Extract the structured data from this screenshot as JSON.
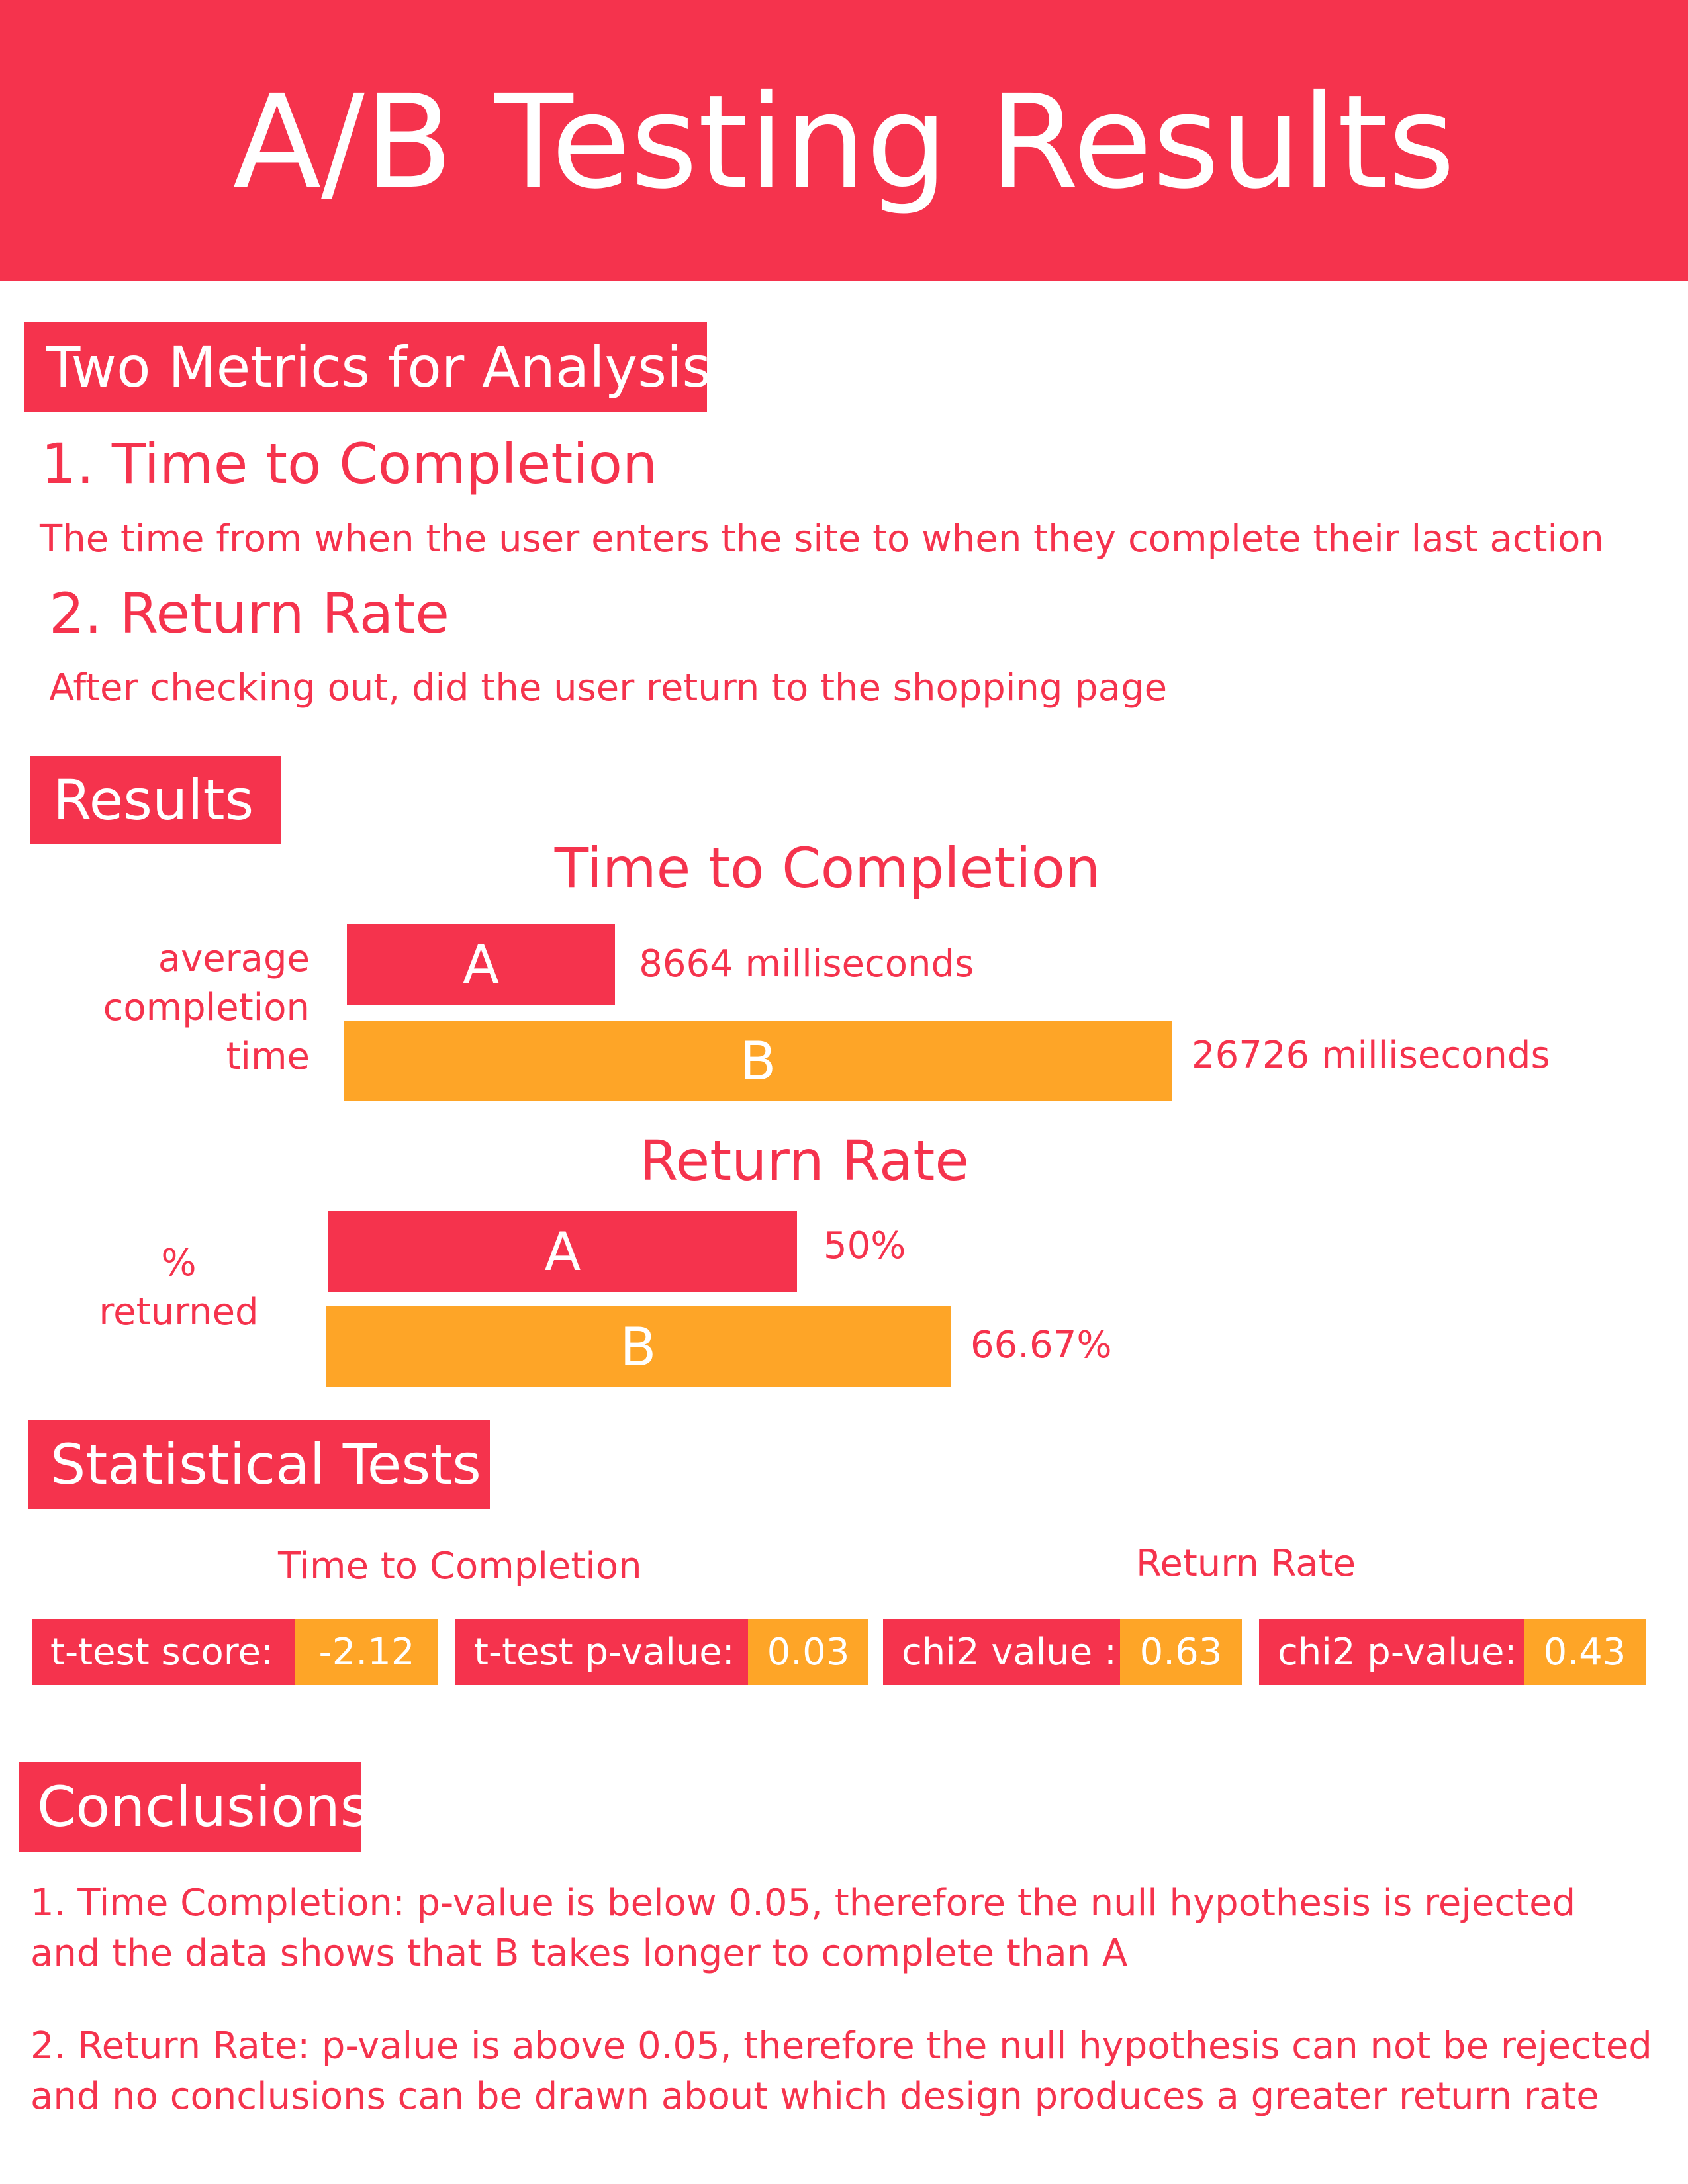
{
  "header": {
    "title": "A/B Testing Results"
  },
  "metrics": {
    "heading": "Two Metrics for Analysis",
    "items": [
      {
        "title": "1. Time to Completion",
        "description": "The time from when the user enters the site to when they complete their last action"
      },
      {
        "title": "2. Return Rate",
        "description": "After checking out, did the user return to the shopping page"
      }
    ]
  },
  "results": {
    "heading": "Results"
  },
  "chart_data": [
    {
      "type": "bar",
      "orientation": "horizontal",
      "title": "Time to Completion",
      "ylabel_lines": [
        "average",
        "completion",
        "time"
      ],
      "categories": [
        "A",
        "B"
      ],
      "values": [
        8664,
        26726
      ],
      "value_labels": [
        "8664 milliseconds",
        "26726 milliseconds"
      ],
      "colors": [
        "#f5334d",
        "#fea527"
      ]
    },
    {
      "type": "bar",
      "orientation": "horizontal",
      "title": "Return Rate",
      "ylabel_lines": [
        "%",
        "returned"
      ],
      "categories": [
        "A",
        "B"
      ],
      "values": [
        50,
        66.67
      ],
      "value_labels": [
        "50%",
        "66.67%"
      ],
      "colors": [
        "#f5334d",
        "#fea527"
      ]
    }
  ],
  "stats": {
    "heading": "Statistical Tests",
    "group_titles": [
      "Time to Completion",
      "Return Rate"
    ],
    "boxes": [
      {
        "label": "t-test score:",
        "value": "-2.12"
      },
      {
        "label": "t-test p-value:",
        "value": "0.03"
      },
      {
        "label": "chi2 value :",
        "value": "0.63"
      },
      {
        "label": "chi2 p-value:",
        "value": "0.43"
      }
    ]
  },
  "conclusions": {
    "heading": "Conclusions",
    "items": [
      {
        "line1": "1. Time Completion: p-value is below 0.05, therefore the null hypothesis is rejected",
        "line2": "and the data shows that B takes longer to complete than A"
      },
      {
        "line1": "2. Return Rate: p-value is above 0.05, therefore the null hypothesis can not be rejected",
        "line2": "and no conclusions can be drawn about which design produces a greater return rate"
      }
    ]
  },
  "colors": {
    "primary": "#f5334d",
    "secondary": "#fea527"
  }
}
